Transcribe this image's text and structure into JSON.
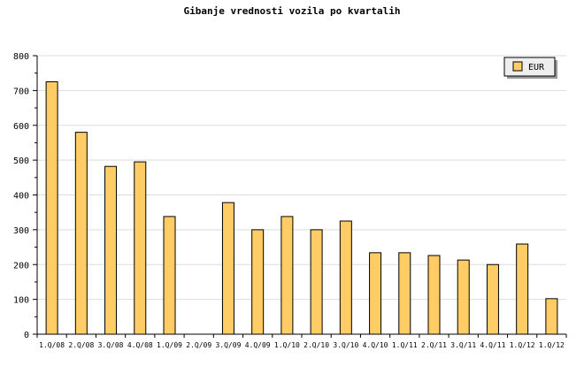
{
  "chart_data": {
    "type": "bar",
    "title": "Gibanje vrednosti vozila po kvartalih",
    "xlabel": "",
    "ylabel": "",
    "ylim": [
      0,
      800
    ],
    "yticks": [
      0,
      100,
      200,
      300,
      400,
      500,
      600,
      700,
      800
    ],
    "grid": true,
    "legend_position": "top-right",
    "categories": [
      "1.Q/08",
      "2.Q/08",
      "3.Q/08",
      "4.Q/08",
      "1.Q/09",
      "2.Q/09",
      "3.Q/09",
      "4.Q/09",
      "1.Q/10",
      "2.Q/10",
      "3.Q/10",
      "4.Q/10",
      "1.Q/11",
      "2.Q/11",
      "3.Q/11",
      "4.Q/11",
      "1.Q/12",
      "1.Q/12"
    ],
    "series": [
      {
        "name": "EUR",
        "color": "#ffcc66",
        "values": [
          725,
          580,
          482,
          495,
          338,
          0,
          378,
          300,
          338,
          300,
          325,
          234,
          234,
          226,
          213,
          200,
          259,
          102
        ]
      }
    ]
  }
}
